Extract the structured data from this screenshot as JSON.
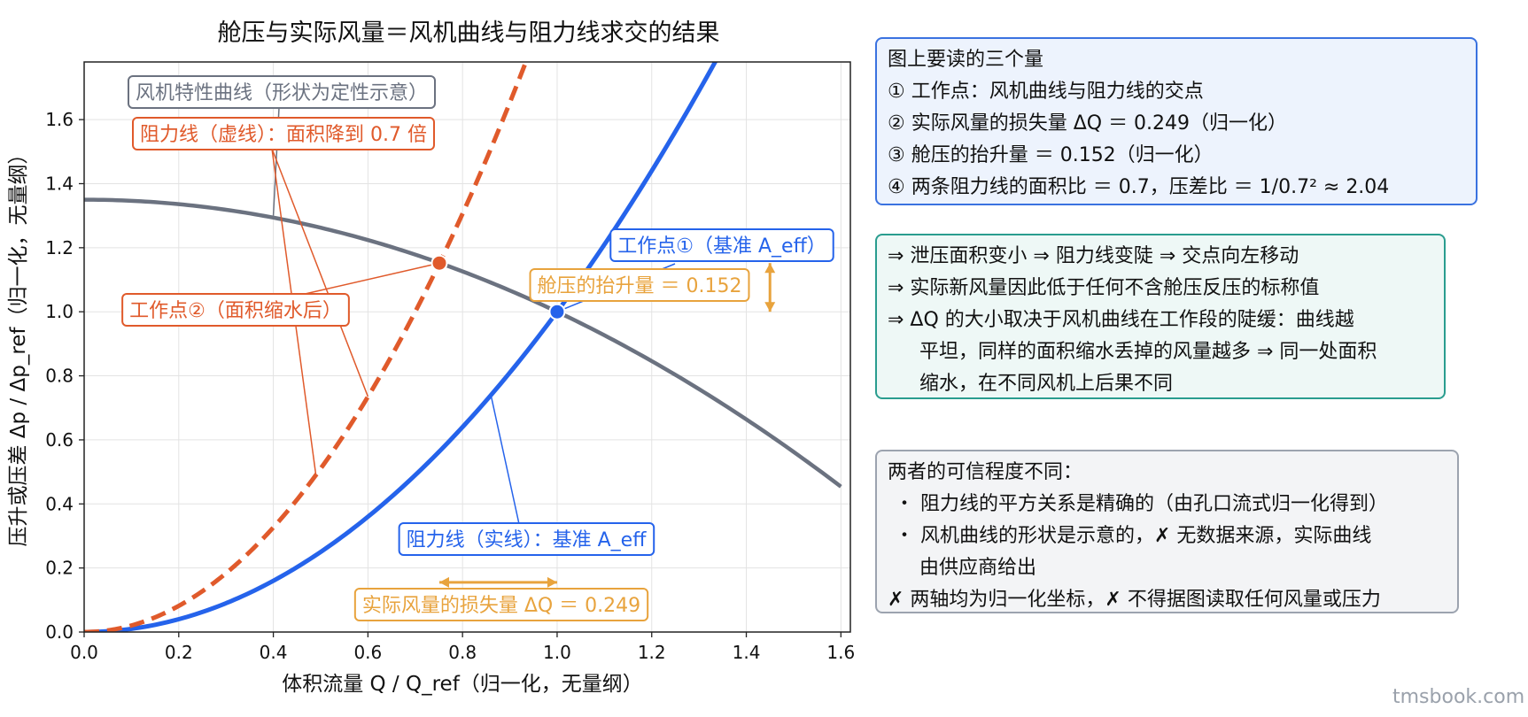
{
  "chart_data": {
    "type": "line",
    "title": "舱压与实际风量＝风机曲线与阻力线求交的结果",
    "xlabel": "体积流量 Q / Q_ref（归一化，无量纲）",
    "ylabel": "压升或压差  Δp / Δp_ref（归一化，无量纲）",
    "xlim": [
      0,
      1.62
    ],
    "ylim": [
      0,
      1.78
    ],
    "xticks": [
      0.0,
      0.2,
      0.4,
      0.6,
      0.8,
      1.0,
      1.2,
      1.4,
      1.6
    ],
    "yticks": [
      0.0,
      0.2,
      0.4,
      0.6,
      0.8,
      1.0,
      1.2,
      1.4,
      1.6
    ],
    "tick_labels_x": [
      "0.0",
      "0.2",
      "0.4",
      "0.6",
      "0.8",
      "1.0",
      "1.2",
      "1.4",
      "1.6"
    ],
    "tick_labels_y": [
      "0.0",
      "0.2",
      "0.4",
      "0.6",
      "0.8",
      "1.0",
      "1.2",
      "1.4",
      "1.6"
    ],
    "grid": true,
    "series": [
      {
        "key": "fan",
        "style": "solid",
        "color": "#6b7280",
        "model": "y = 1.35 - 0.35*x^2",
        "x_range": [
          0,
          1.6
        ]
      },
      {
        "key": "resistance_base",
        "style": "solid",
        "color": "#2563eb",
        "model": "y = x^2",
        "x_range": [
          0,
          1.34
        ]
      },
      {
        "key": "resistance_reduced",
        "style": "dashed",
        "color": "#e05a2b",
        "model": "y = x^2 / 0.49",
        "x_range": [
          0,
          0.94
        ]
      }
    ],
    "points": [
      {
        "name": "工作点①",
        "x": 1.0,
        "y": 1.0,
        "color": "#2563eb"
      },
      {
        "name": "工作点②",
        "x": 0.751,
        "y": 1.152,
        "color": "#e05a2b"
      }
    ],
    "annotations": {
      "fan_label": {
        "text": "风机特性曲线（形状为定性示意）",
        "color": "#6b7280",
        "anchor": [
          0.4,
          1.3
        ]
      },
      "dashed_label": {
        "text": "阻力线（虚线）：面积降到 0.7 倍",
        "color": "#e05a2b",
        "anchors": [
          [
            0.6,
            0.735
          ],
          [
            0.49,
            0.49
          ]
        ]
      },
      "op2_label": {
        "text": "工作点②（面积缩水后）",
        "color": "#e05a2b",
        "anchor": [
          0.751,
          1.152
        ]
      },
      "op1_label": {
        "text": "工作点①（基准 A_eff）",
        "color": "#2563eb",
        "anchor": [
          1.0,
          1.0
        ]
      },
      "solid_label": {
        "text": "阻力线（实线）：基准 A_eff",
        "color": "#2563eb",
        "anchor": [
          0.86,
          0.74
        ]
      },
      "pressure_rise": {
        "text": "舱压的抬升量 ＝ 0.152",
        "color": "#e8a33d",
        "arrow_x": 1.45,
        "arrow_y": [
          1.0,
          1.152
        ]
      },
      "flow_loss": {
        "text": "实际风量的损失量 ΔQ ＝ 0.249",
        "color": "#e8a33d",
        "arrow_x": [
          0.751,
          1.0
        ],
        "arrow_y": 0.155
      }
    }
  },
  "panels": {
    "quantities": {
      "title": "图上要读的三个量",
      "lines": [
        "① 工作点：风机曲线与阻力线的交点",
        "② 实际风量的损失量 ΔQ ＝ 0.249（归一化）",
        "③ 舱压的抬升量 ＝ 0.152（归一化）",
        "④ 两条阻力线的面积比 ＝ 0.7，压差比 ＝ 1/0.7² ≈ 2.04"
      ]
    },
    "mechanism": {
      "lines": [
        "⇒ 泄压面积变小 ⇒ 阻力线变陡 ⇒ 交点向左移动",
        "⇒ 实际新风量因此低于任何不含舱压反压的标称值",
        "⇒ ΔQ 的大小取决于风机曲线在工作段的陡缓：曲线越",
        "平坦，同样的面积缩水丢掉的风量越多 ⇒ 同一处面积",
        "缩水，在不同风机上后果不同"
      ]
    },
    "credibility": {
      "title": "两者的可信程度不同：",
      "lines": [
        "・ 阻力线的平方关系是精确的（由孔口流式归一化得到）",
        "・ 风机曲线的形状是示意的，✗ 无数据来源，实际曲线",
        "由供应商给出",
        "✗ 两轴均为归一化坐标，✗ 不得据图读取任何风量或压力"
      ]
    }
  },
  "watermark": "tmsbook.com"
}
